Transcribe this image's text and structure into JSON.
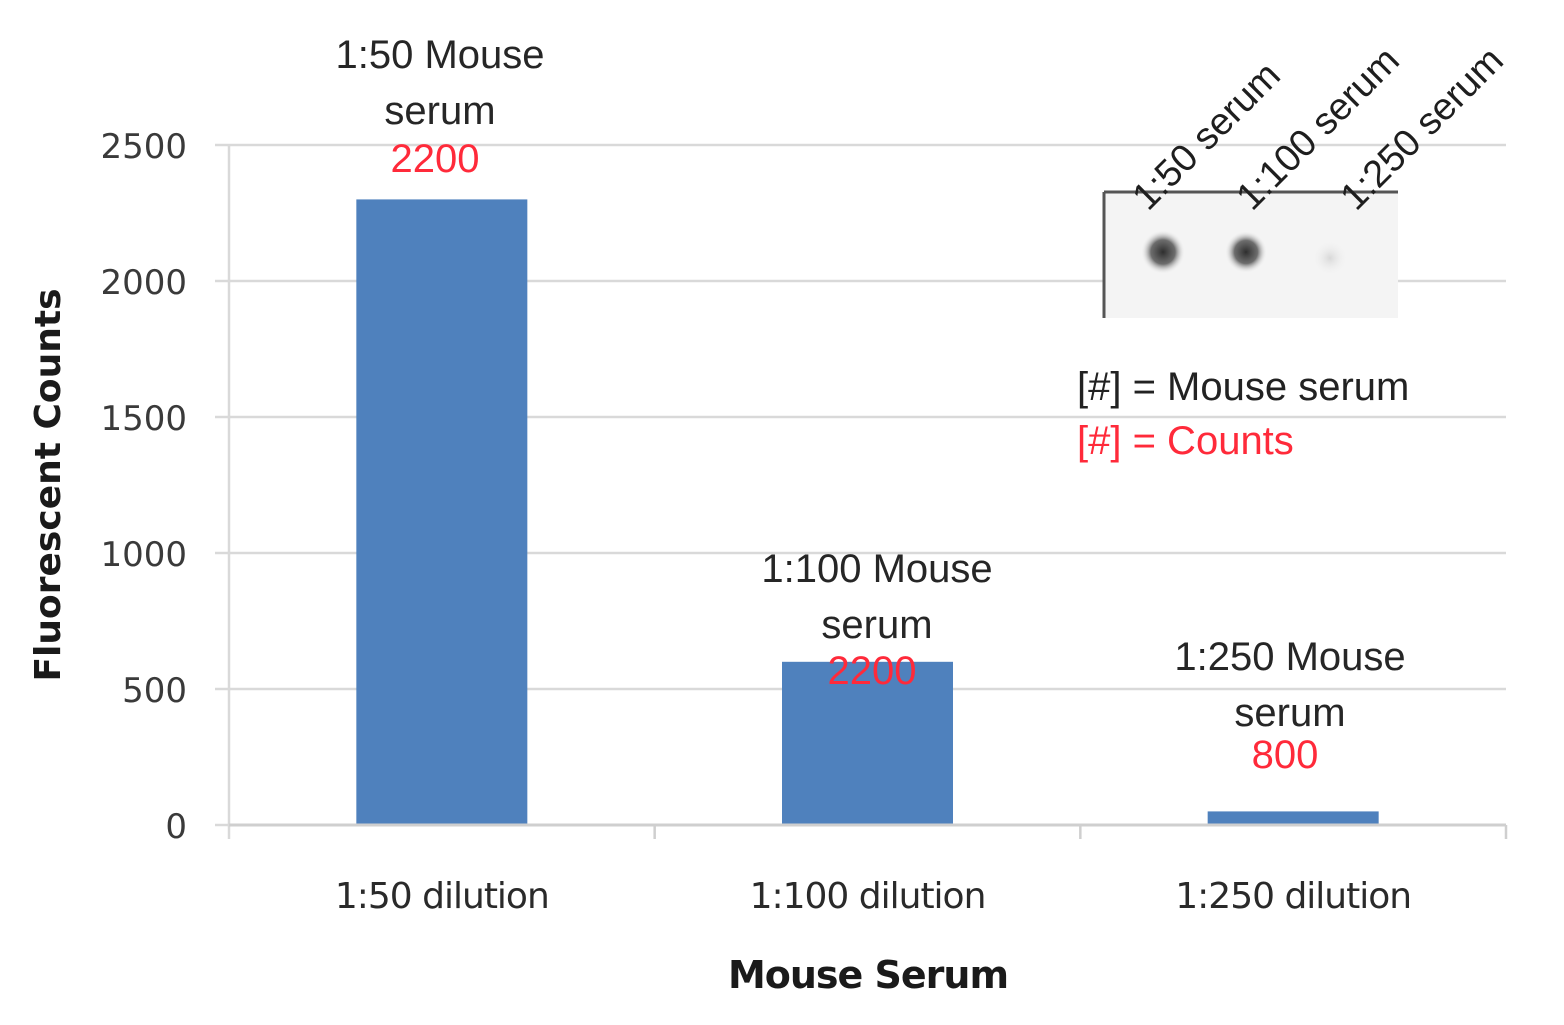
{
  "chart_data": {
    "type": "bar",
    "title": "",
    "xlabel": "Mouse Serum",
    "ylabel": "Fluorescent Counts",
    "categories": [
      "1:50 dilution",
      "1:100 dilution",
      "1:250 dilution"
    ],
    "values": [
      2300,
      600,
      50
    ],
    "ylim": [
      0,
      2500
    ],
    "yticks": [
      0,
      500,
      1000,
      1500,
      2000,
      2500
    ],
    "grid": true,
    "legend": null,
    "bar_color": "#4f81bd",
    "annotations": [
      {
        "label": "1:50 Mouse serum",
        "count": "2200",
        "category": "1:50 dilution"
      },
      {
        "label": "1:100 Mouse serum",
        "count": "2200",
        "category": "1:100 dilution"
      },
      {
        "label": "1:250 Mouse serum",
        "count": "800",
        "category": "1:250 dilution"
      }
    ],
    "inset": {
      "type": "dot-blot image",
      "column_labels": [
        "1:50 serum",
        "1:100 serum",
        "1:250 serum"
      ],
      "spot_intensity": [
        "strong",
        "strong",
        "faint"
      ]
    },
    "key": [
      {
        "text": "[#] = Mouse serum",
        "color": "#222222"
      },
      {
        "text": "[#] = Counts",
        "color": "#ff2a3a"
      }
    ]
  },
  "colors": {
    "bar": "#4f81bd",
    "grid": "#d9d9d9",
    "count_text": "#ff2a3a",
    "text": "#262626"
  }
}
